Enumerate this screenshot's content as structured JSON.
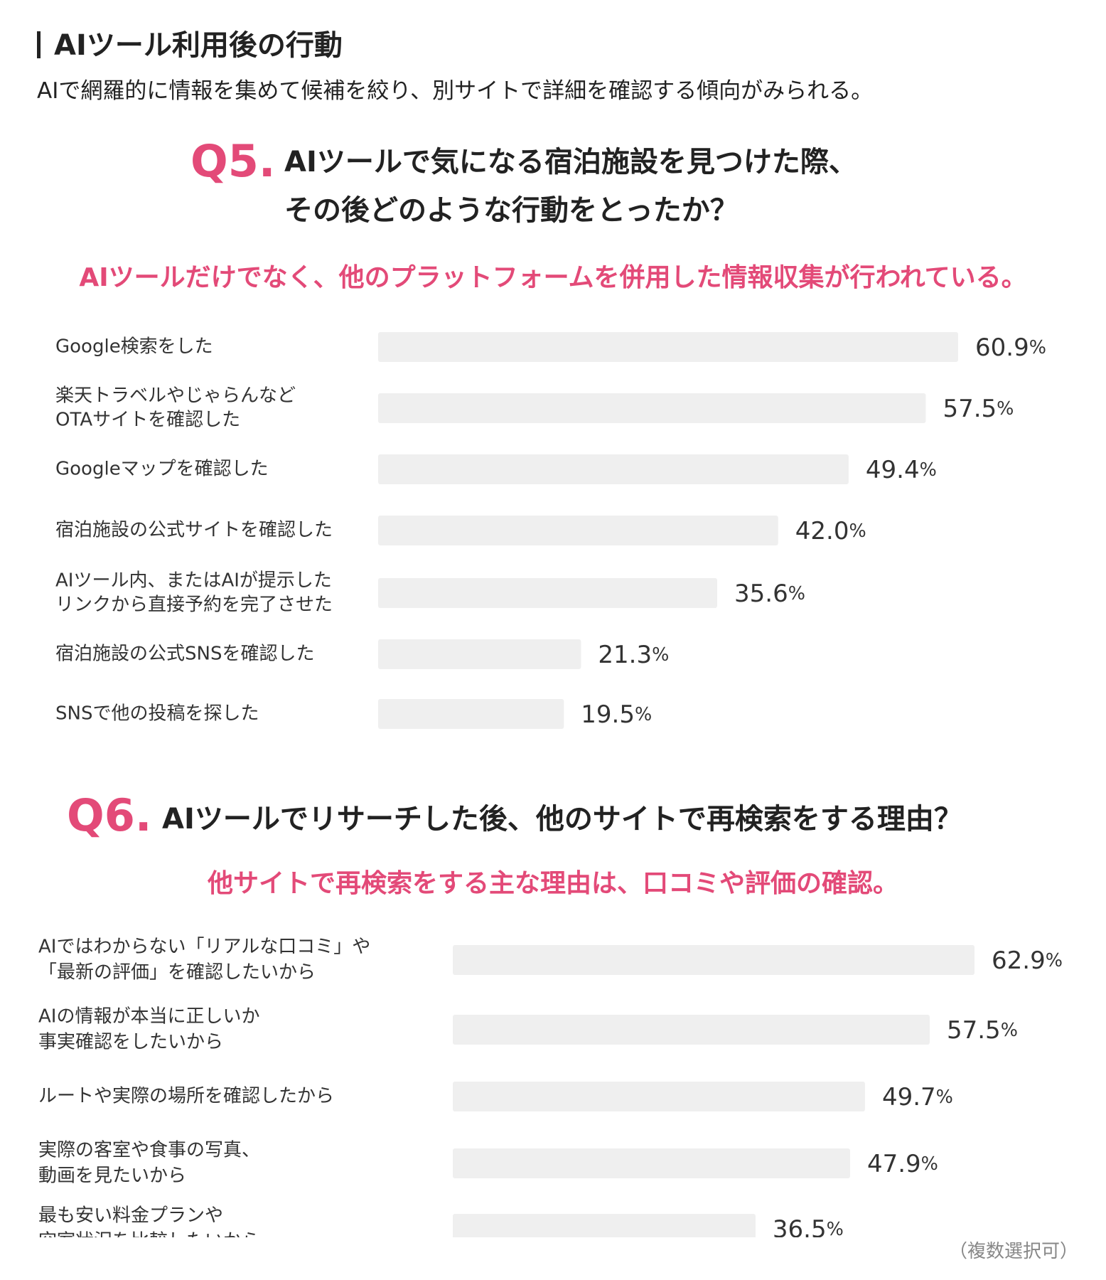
{
  "section": {
    "title": "AIツール利用後の行動",
    "subtitle": "AIで網羅的に情報を集めて候補を絞り、別サイトで詳細を確認する傾向がみられる。"
  },
  "q5": {
    "number": "Q5.",
    "question_line1": "AIツールで気になる宿泊施設を見つけた際、",
    "question_line2": "その後どのような行動をとったか？",
    "highlight": "AIツールだけでなく、他のプラットフォームを併用した情報収集が行われている。"
  },
  "q6": {
    "number": "Q6.",
    "question": "AIツールでリサーチした後、他のサイトで再検索をする理由？",
    "highlight": "他サイトで再検索をする主な理由は、口コミや評価の確認。"
  },
  "footnote": "（複数選択可）",
  "colors": {
    "accent": "#e34a78",
    "bar": "#efefef",
    "text": "#222222"
  },
  "chart_data": [
    {
      "type": "bar",
      "orientation": "horizontal",
      "categories": [
        [
          "Google検索をした"
        ],
        [
          "楽天トラベルやじゃらんなど",
          "OTAサイトを確認した"
        ],
        [
          "Googleマップを確認した"
        ],
        [
          "宿泊施設の公式サイトを確認した"
        ],
        [
          "AIツール内、またはAIが提示した",
          "リンクから直接予約を完了させた"
        ],
        [
          "宿泊施設の公式SNSを確認した"
        ],
        [
          "SNSで他の投稿を探した"
        ]
      ],
      "values": [
        60.9,
        57.5,
        49.4,
        42.0,
        35.6,
        21.3,
        19.5
      ],
      "value_labels": [
        "60.9",
        "57.5",
        "49.4",
        "42.0",
        "35.6",
        "21.3",
        "19.5"
      ],
      "unit": "%",
      "xlim": [
        0,
        100
      ]
    },
    {
      "type": "bar",
      "orientation": "horizontal",
      "categories": [
        [
          "AIではわからない「リアルな口コミ」や",
          "「最新の評価」を確認したいから"
        ],
        [
          "AIの情報が本当に正しいか",
          "事実確認をしたいから"
        ],
        [
          "ルートや実際の場所を確認したから"
        ],
        [
          "実際の客室や食事の写真、",
          "動画を見たいから"
        ],
        [
          "最も安い料金プランや",
          "空室状況を比較したいから"
        ]
      ],
      "values": [
        62.9,
        57.5,
        49.7,
        47.9,
        36.5
      ],
      "value_labels": [
        "62.9",
        "57.5",
        "49.7",
        "47.9",
        "36.5"
      ],
      "unit": "%",
      "xlim": [
        0,
        100
      ]
    }
  ]
}
